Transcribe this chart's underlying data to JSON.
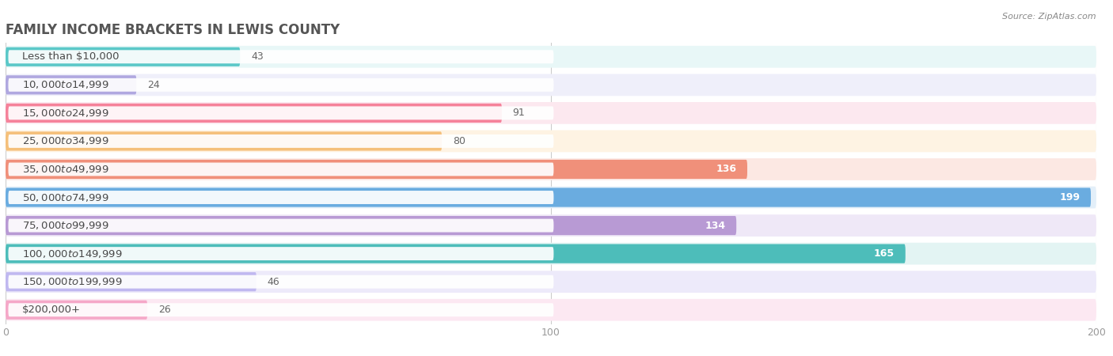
{
  "title": "FAMILY INCOME BRACKETS IN LEWIS COUNTY",
  "source": "Source: ZipAtlas.com",
  "categories": [
    "Less than $10,000",
    "$10,000 to $14,999",
    "$15,000 to $24,999",
    "$25,000 to $34,999",
    "$35,000 to $49,999",
    "$50,000 to $74,999",
    "$75,000 to $99,999",
    "$100,000 to $149,999",
    "$150,000 to $199,999",
    "$200,000+"
  ],
  "values": [
    43,
    24,
    91,
    80,
    136,
    199,
    134,
    165,
    46,
    26
  ],
  "bar_colors": [
    "#5bc8c8",
    "#b0a8e0",
    "#f5829a",
    "#f5c07a",
    "#f0907a",
    "#6aace0",
    "#b89ad4",
    "#4dbdba",
    "#c0b8f0",
    "#f5a8c8"
  ],
  "bg_colors": [
    "#e8f7f7",
    "#efeffa",
    "#fce8ef",
    "#fef3e3",
    "#fce8e3",
    "#e3eff9",
    "#efe8f7",
    "#e3f4f3",
    "#edeafa",
    "#fce8f2"
  ],
  "xlim_data": [
    0,
    200
  ],
  "xticks": [
    0,
    100,
    200
  ],
  "title_fontsize": 12,
  "label_fontsize": 9.5,
  "value_fontsize": 9,
  "bar_height": 0.68,
  "title_color": "#555555",
  "label_color": "#4a4a4a",
  "source_color": "#888888",
  "white_value_threshold": 110
}
